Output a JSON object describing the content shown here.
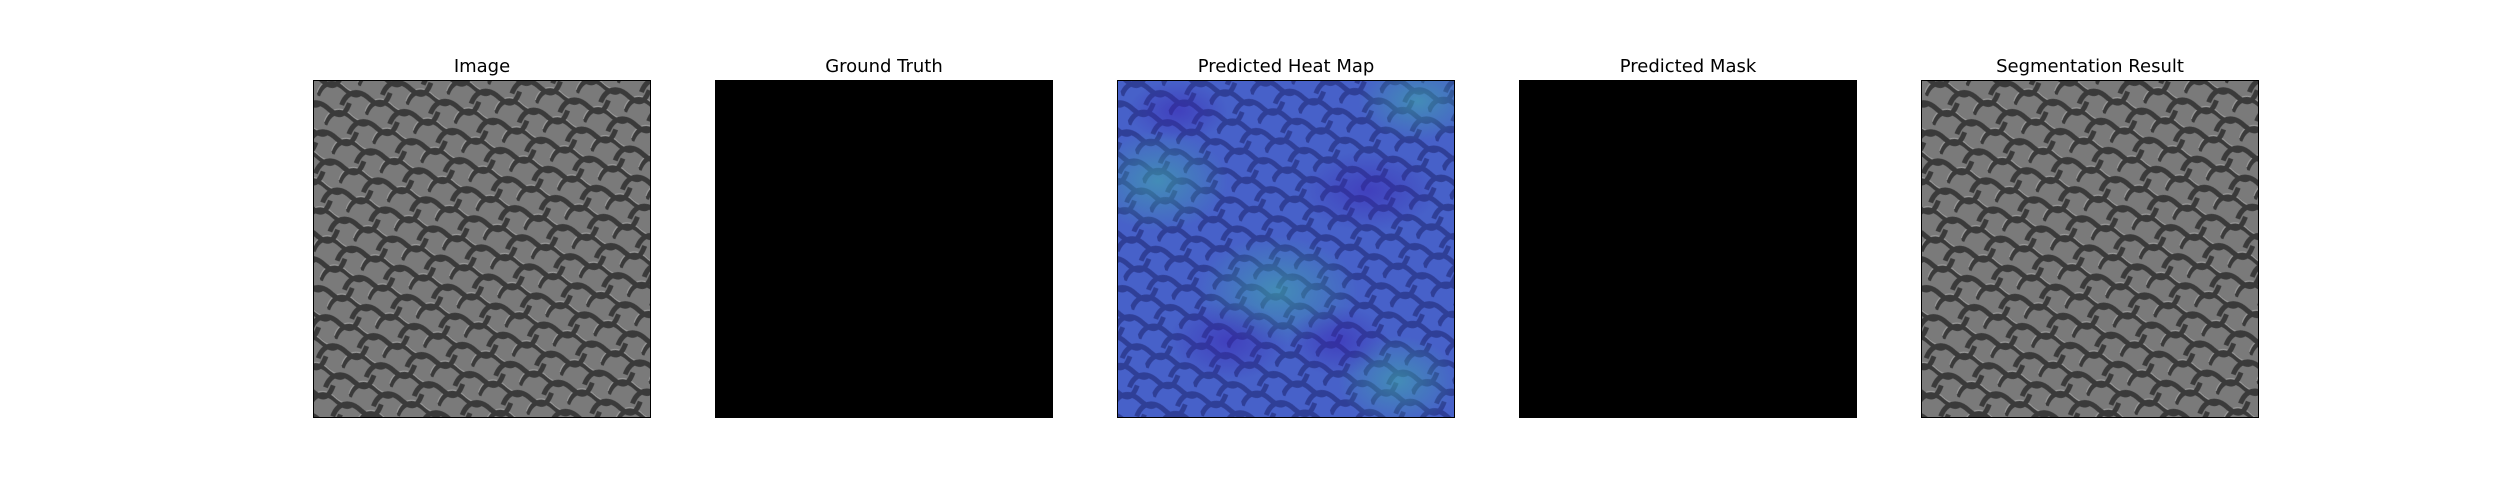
{
  "panels": [
    {
      "title": "Image",
      "content": "textured-mesh"
    },
    {
      "title": "Ground Truth",
      "content": "empty-black-mask"
    },
    {
      "title": "Predicted Heat Map",
      "content": "heatmap-overlay"
    },
    {
      "title": "Predicted Mask",
      "content": "empty-black-mask"
    },
    {
      "title": "Segmentation Result",
      "content": "textured-mesh"
    }
  ],
  "colors": {
    "texture_base": "#7a7a7a",
    "texture_groove": "#3a3a3a",
    "texture_highlight": "#9a9a9a",
    "heat_low": "#3a3cc0",
    "heat_mid": "#3f78b8",
    "heat_high": "#3fa7b0",
    "mask": "#000000"
  }
}
